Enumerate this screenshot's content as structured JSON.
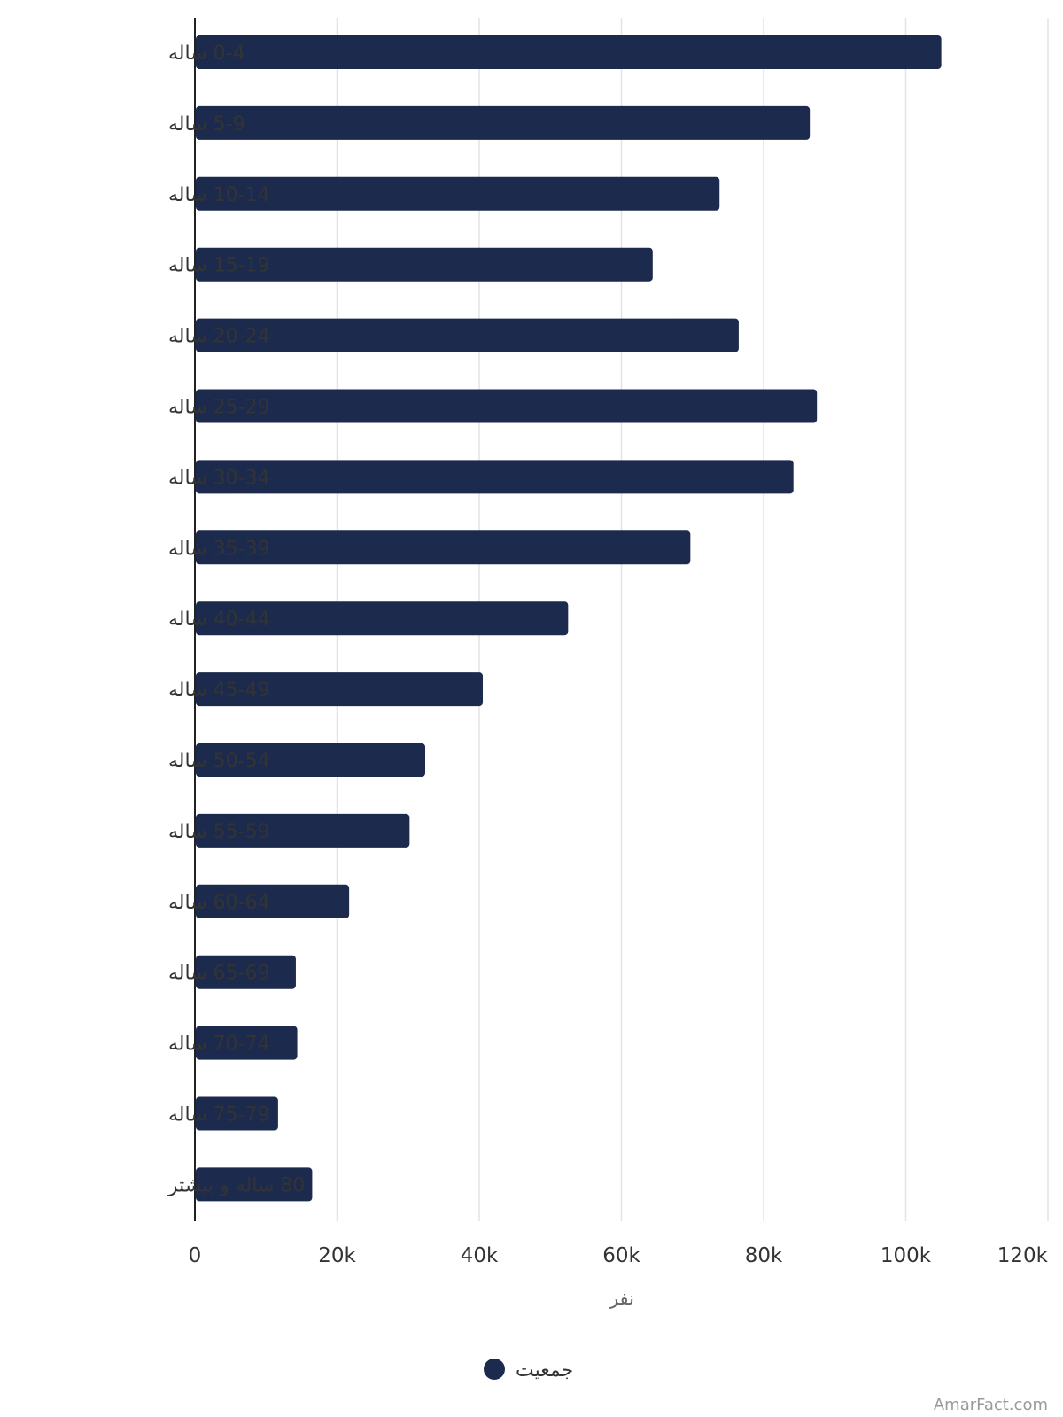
{
  "chart_data": {
    "type": "bar",
    "orientation": "horizontal",
    "categories": [
      "0-4 ساله",
      "5-9 ساله",
      "10-14 ساله",
      "15-19 ساله",
      "20-24 ساله",
      "25-29 ساله",
      "30-34 ساله",
      "35-39 ساله",
      "40-44 ساله",
      "45-49 ساله",
      "50-54 ساله",
      "55-59 ساله",
      "60-64 ساله",
      "65-69 ساله",
      "70-74 ساله",
      "75-79 ساله",
      "80 ساله و بیشتر"
    ],
    "series": [
      {
        "name": "جمعیت",
        "color": "#1c2b4d",
        "values": [
          105000,
          86500,
          73800,
          64400,
          76500,
          87500,
          84200,
          69700,
          52500,
          40500,
          32400,
          30200,
          21700,
          14200,
          14400,
          11700,
          16500
        ]
      }
    ],
    "xlabel": "نفر",
    "xlim": [
      0,
      120000
    ],
    "xticks": [
      0,
      20000,
      40000,
      60000,
      80000,
      100000,
      120000
    ],
    "xtick_labels": [
      "0",
      "20k",
      "40k",
      "60k",
      "80k",
      "100k",
      "120k"
    ],
    "grid": true,
    "legend": "bottom-center"
  },
  "watermark": "AmarFact.com"
}
